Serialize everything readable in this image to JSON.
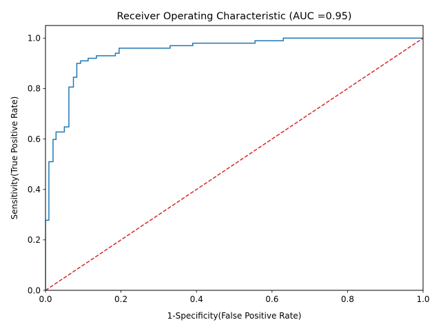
{
  "chart_data": {
    "type": "line",
    "title": "Receiver Operating Characteristic (AUC =0.95)",
    "xlabel": "1-Specificity(False Positive Rate)",
    "ylabel": "Sensitivity(True Positive Rate)",
    "xlim": [
      0,
      1
    ],
    "ylim": [
      0,
      1.05
    ],
    "grid": false,
    "x_ticks": [
      0.0,
      0.2,
      0.4,
      0.6,
      0.8,
      1.0
    ],
    "x_tick_labels": [
      "0.0",
      "0.2",
      "0.4",
      "0.6",
      "0.8",
      "1.0"
    ],
    "y_ticks": [
      0.0,
      0.2,
      0.4,
      0.6,
      0.8,
      1.0
    ],
    "y_tick_labels": [
      "0.0",
      "0.2",
      "0.4",
      "0.6",
      "0.8",
      "1.0"
    ],
    "series": [
      {
        "color": "#1f77b4",
        "style": "solid",
        "step": true,
        "x": [
          0.0,
          0.0,
          0.009,
          0.009,
          0.02,
          0.02,
          0.028,
          0.028,
          0.05,
          0.05,
          0.062,
          0.062,
          0.074,
          0.074,
          0.083,
          0.083,
          0.093,
          0.093,
          0.113,
          0.113,
          0.135,
          0.135,
          0.185,
          0.185,
          0.195,
          0.195,
          0.33,
          0.33,
          0.39,
          0.39,
          0.555,
          0.555,
          0.63,
          0.63,
          1.0
        ],
        "y": [
          0.0,
          0.278,
          0.278,
          0.51,
          0.51,
          0.598,
          0.598,
          0.628,
          0.628,
          0.648,
          0.648,
          0.806,
          0.806,
          0.845,
          0.845,
          0.9,
          0.9,
          0.91,
          0.91,
          0.92,
          0.92,
          0.93,
          0.93,
          0.94,
          0.94,
          0.96,
          0.96,
          0.97,
          0.97,
          0.98,
          0.98,
          0.99,
          0.99,
          1.0,
          1.0
        ]
      },
      {
        "color": "#d62728",
        "style": "dashed",
        "x": [
          0,
          1
        ],
        "y": [
          0,
          1
        ]
      }
    ]
  }
}
